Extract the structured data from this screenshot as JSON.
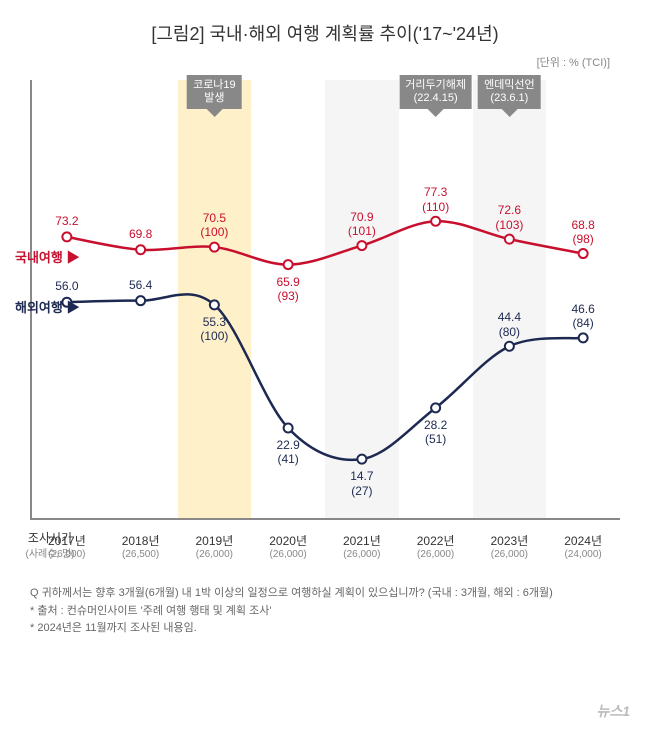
{
  "title": "[그림2] 국내·해외 여행 계획률 추이('17~'24년)",
  "unit_label": "[단위 : % (TCI)]",
  "chart": {
    "type": "line",
    "background_color": "#ffffff",
    "highlight_color": "#fdebb3",
    "grid_band_color": "#f5f5f5",
    "axis_color": "#888888",
    "ylim": [
      0,
      100
    ],
    "x_header": "조사시기",
    "x_subheader": "(사례수, 명)",
    "x_labels": [
      "2017년",
      "2018년",
      "2019년",
      "2020년",
      "2021년",
      "2022년",
      "2023년",
      "2024년"
    ],
    "x_sublabels": [
      "(26,000)",
      "(26,500)",
      "(26,000)",
      "(26,000)",
      "(26,000)",
      "(26,000)",
      "(26,000)",
      "(24,000)"
    ],
    "callouts": [
      {
        "x_index": 2,
        "text_line1": "코로나19",
        "text_line2": "발생"
      },
      {
        "x_index": 5,
        "text_line1": "거리두기해제",
        "text_line2": "(22.4.15)"
      },
      {
        "x_index": 6,
        "text_line1": "엔데믹선언",
        "text_line2": "(23.6.1)"
      }
    ],
    "highlight_band_index": 2,
    "grid_bands": [
      4,
      6
    ],
    "series": [
      {
        "name": "국내여행",
        "color": "#c8102e",
        "line_width": 2.5,
        "marker": "circle-open",
        "values": [
          73.2,
          69.8,
          70.5,
          65.9,
          70.9,
          77.3,
          72.6,
          68.8
        ],
        "tci": [
          null,
          null,
          100,
          93,
          101,
          110,
          103,
          98
        ],
        "label_pos": [
          "above",
          "above",
          "above",
          "below",
          "above",
          "above",
          "above",
          "above"
        ]
      },
      {
        "name": "해외여행",
        "color": "#1d2951",
        "line_width": 2.5,
        "marker": "circle-open",
        "values": [
          56.0,
          56.4,
          55.3,
          22.9,
          14.7,
          28.2,
          44.4,
          46.6
        ],
        "tci": [
          null,
          null,
          100,
          41,
          27,
          51,
          80,
          84
        ],
        "label_pos": [
          "above",
          "above",
          "below",
          "below",
          "below",
          "below",
          "above",
          "above"
        ]
      }
    ]
  },
  "footnotes": {
    "q": "Q 귀하께서는 향후 3개월(6개월) 내 1박 이상의 일정으로 여행하실 계획이 있으십니까? (국내 : 3개월, 해외 : 6개월)",
    "source": "* 출처 : 컨슈머인사이트 '주례 여행 행태 및 계획 조사'",
    "note": "* 2024년은 11월까지 조사된 내용임."
  },
  "watermark": "뉴스1"
}
